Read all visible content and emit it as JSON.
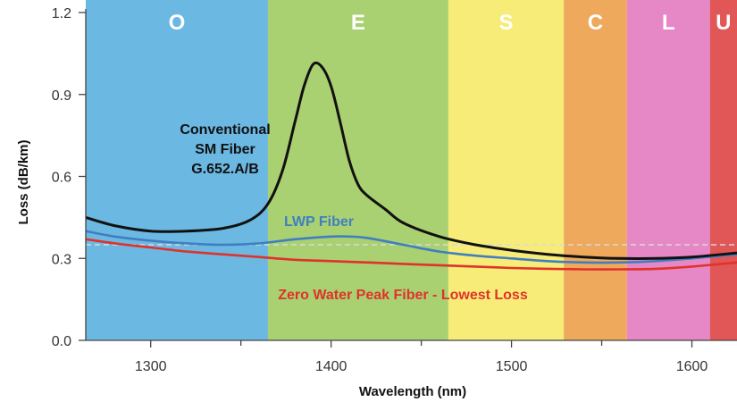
{
  "chart_data": {
    "type": "line",
    "title": "",
    "xlabel": "Wavelength (nm)",
    "ylabel": "Loss (dB/km)",
    "xlim": [
      1264,
      1625
    ],
    "ylim": [
      0.0,
      1.2
    ],
    "x_ticks": [
      1300,
      1400,
      1500,
      1600
    ],
    "x_tick_labels": [
      "1300",
      "1400",
      "1500",
      "1600"
    ],
    "x_minor_ticks": [
      1350,
      1450,
      1550
    ],
    "y_ticks": [
      0.0,
      0.3,
      0.6,
      0.9,
      1.2
    ],
    "y_tick_labels": [
      "0.0",
      "0.3",
      "0.6",
      "0.9",
      "1.2"
    ],
    "grid": false,
    "bands": [
      {
        "label": "O",
        "from": 1264,
        "to": 1365,
        "color": "#6bb8e3"
      },
      {
        "label": "E",
        "from": 1365,
        "to": 1465,
        "color": "#a9d071"
      },
      {
        "label": "S",
        "from": 1465,
        "to": 1529,
        "color": "#f6ec77"
      },
      {
        "label": "C",
        "from": 1529,
        "to": 1564,
        "color": "#eea95c"
      },
      {
        "label": "L",
        "from": 1564,
        "to": 1610,
        "color": "#e688c6"
      },
      {
        "label": "U",
        "from": 1610,
        "to": 1625,
        "color": "#e15656"
      }
    ],
    "reference_line": {
      "y": 0.35,
      "color": "#d9d9d9",
      "style": "dashed"
    },
    "series": [
      {
        "name": "Conventional SM Fiber G.652.A/B",
        "color": "#111111",
        "x": [
          1264,
          1280,
          1300,
          1320,
          1340,
          1355,
          1365,
          1373,
          1380,
          1385,
          1390,
          1395,
          1400,
          1405,
          1410,
          1415,
          1420,
          1430,
          1440,
          1460,
          1480,
          1500,
          1520,
          1540,
          1560,
          1580,
          1600,
          1625
        ],
        "y": [
          0.45,
          0.42,
          0.4,
          0.4,
          0.41,
          0.44,
          0.5,
          0.62,
          0.8,
          0.93,
          1.01,
          1.0,
          0.93,
          0.8,
          0.66,
          0.57,
          0.53,
          0.48,
          0.43,
          0.38,
          0.35,
          0.33,
          0.315,
          0.305,
          0.3,
          0.3,
          0.305,
          0.32
        ]
      },
      {
        "name": "LWP Fiber",
        "color": "#3f7fc1",
        "x": [
          1264,
          1280,
          1300,
          1320,
          1340,
          1360,
          1380,
          1400,
          1410,
          1420,
          1440,
          1460,
          1480,
          1500,
          1520,
          1540,
          1560,
          1580,
          1600,
          1625
        ],
        "y": [
          0.4,
          0.38,
          0.365,
          0.355,
          0.35,
          0.355,
          0.37,
          0.38,
          0.38,
          0.375,
          0.35,
          0.325,
          0.31,
          0.3,
          0.29,
          0.285,
          0.285,
          0.29,
          0.3,
          0.315
        ]
      },
      {
        "name": "Zero Water Peak Fiber - Lowest Loss",
        "color": "#e0322b",
        "x": [
          1264,
          1280,
          1300,
          1320,
          1340,
          1360,
          1380,
          1400,
          1420,
          1440,
          1460,
          1480,
          1500,
          1520,
          1540,
          1560,
          1580,
          1600,
          1625
        ],
        "y": [
          0.37,
          0.355,
          0.34,
          0.325,
          0.315,
          0.305,
          0.295,
          0.29,
          0.285,
          0.28,
          0.275,
          0.27,
          0.265,
          0.262,
          0.26,
          0.26,
          0.262,
          0.27,
          0.285
        ]
      }
    ],
    "annotations": [
      {
        "series": "Conventional SM Fiber G.652.A/B",
        "lines": [
          "Conventional",
          "SM Fiber",
          "G.652.A/B"
        ],
        "color": "#111111"
      },
      {
        "series": "LWP Fiber",
        "lines": [
          "LWP Fiber"
        ],
        "color": "#3f7fc1"
      },
      {
        "series": "Zero Water Peak Fiber - Lowest Loss",
        "lines": [
          "Zero Water Peak Fiber - Lowest Loss"
        ],
        "color": "#e0322b"
      }
    ]
  }
}
